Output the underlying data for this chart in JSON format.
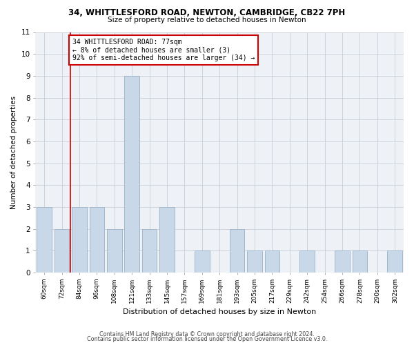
{
  "title1": "34, WHITTLESFORD ROAD, NEWTON, CAMBRIDGE, CB22 7PH",
  "title2": "Size of property relative to detached houses in Newton",
  "xlabel": "Distribution of detached houses by size in Newton",
  "ylabel": "Number of detached properties",
  "categories": [
    "60sqm",
    "72sqm",
    "84sqm",
    "96sqm",
    "108sqm",
    "121sqm",
    "133sqm",
    "145sqm",
    "157sqm",
    "169sqm",
    "181sqm",
    "193sqm",
    "205sqm",
    "217sqm",
    "229sqm",
    "242sqm",
    "254sqm",
    "266sqm",
    "278sqm",
    "290sqm",
    "302sqm"
  ],
  "values": [
    3,
    2,
    3,
    3,
    2,
    9,
    2,
    3,
    0,
    1,
    0,
    2,
    1,
    1,
    0,
    1,
    0,
    1,
    1,
    0,
    1
  ],
  "bar_color": "#c8d8e8",
  "bar_edge_color": "#a0b8cc",
  "subject_line_color": "#cc0000",
  "annotation_text": "34 WHITTLESFORD ROAD: 77sqm\n← 8% of detached houses are smaller (3)\n92% of semi-detached houses are larger (34) →",
  "annotation_box_color": "#cc0000",
  "ylim": [
    0,
    11
  ],
  "yticks": [
    0,
    1,
    2,
    3,
    4,
    5,
    6,
    7,
    8,
    9,
    10,
    11
  ],
  "footer1": "Contains HM Land Registry data © Crown copyright and database right 2024.",
  "footer2": "Contains public sector information licensed under the Open Government Licence v3.0.",
  "bg_color": "#eef2f7",
  "grid_color": "#c8ccd4"
}
